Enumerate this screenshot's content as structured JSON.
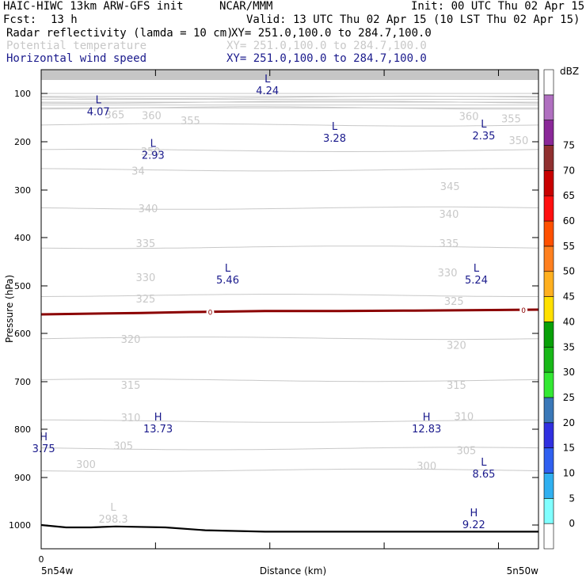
{
  "header": {
    "title": "HAIC-HIWC 13km ARW-GFS init",
    "org": "NCAR/MMM",
    "init": "Init: 00 UTC Thu 02 Apr 15",
    "fcst_label": "Fcst:",
    "fcst_value": "13 h",
    "valid": "Valid: 13 UTC Thu 02 Apr 15 (10 LST Thu 02 Apr 15)",
    "fields": [
      {
        "name": "Radar reflectivity (lamda = 10 cm)",
        "xy": "XY= 251.0,100.0 to 284.7,100.0",
        "color": "#000000"
      },
      {
        "name": "Potential temperature",
        "xy": "XY= 251.0,100.0 to 284.7,100.0",
        "color": "#c8c8c8"
      },
      {
        "name": "Horizontal wind speed",
        "xy": "XY= 251.0,100.0 to 284.7,100.0",
        "color": "#1a1a8c"
      }
    ]
  },
  "chart_data": {
    "type": "contour-cross-section",
    "ylabel": "Pressure (hPa)",
    "xlabel": "Distance (km)",
    "y_ticks": [
      "100",
      "200",
      "300",
      "400",
      "500",
      "600",
      "700",
      "800",
      "900",
      "1000"
    ],
    "x_start_tick": "0",
    "x_left_label": "5n54w",
    "x_right_label": "5n50w",
    "ylim": [
      1045,
      60
    ],
    "xlim": [
      0,
      100
    ],
    "colorbar": {
      "unit": "dBZ",
      "levels": [
        "0",
        "5",
        "10",
        "15",
        "20",
        "25",
        "30",
        "35",
        "40",
        "45",
        "50",
        "55",
        "60",
        "65",
        "70",
        "75"
      ],
      "colors": [
        "#ffffff",
        "#80ffff",
        "#30b0f0",
        "#3060f0",
        "#3030e0",
        "#3a78b8",
        "#33e833",
        "#18b818",
        "#08a008",
        "#ffe000",
        "#ffb020",
        "#ff8020",
        "#ff5000",
        "#ff1010",
        "#c80000",
        "#903030",
        "#8a2898",
        "#b070c0",
        "#ffffff"
      ]
    },
    "theta_contours": [
      {
        "label": "365",
        "p": 108
      },
      {
        "label": "360",
        "p": 118
      },
      {
        "label": "355",
        "p": 130
      },
      {
        "label": "350",
        "p": 165
      },
      {
        "label": "345",
        "p": 218
      },
      {
        "label": "340",
        "p": 258
      },
      {
        "label": "335",
        "p": 338
      },
      {
        "label": "330",
        "p": 420
      },
      {
        "label": "325",
        "p": 520
      },
      {
        "label": "320",
        "p": 610
      },
      {
        "label": "315",
        "p": 697
      },
      {
        "label": "310",
        "p": 783
      },
      {
        "label": "305",
        "p": 840
      },
      {
        "label": "300",
        "p": 885
      }
    ],
    "theta_labels": [
      {
        "text": "365",
        "x": 14.8,
        "p": 152
      },
      {
        "text": "360",
        "x": 22.2,
        "p": 153
      },
      {
        "text": "355",
        "x": 30.0,
        "p": 164
      },
      {
        "text": "350",
        "x": 22.0,
        "p": 228
      },
      {
        "text": "34",
        "x": 19.5,
        "p": 268
      },
      {
        "text": "345",
        "x": 82.2,
        "p": 300
      },
      {
        "text": "340",
        "x": 21.5,
        "p": 347
      },
      {
        "text": "340",
        "x": 82.0,
        "p": 358
      },
      {
        "text": "335",
        "x": 21.0,
        "p": 420
      },
      {
        "text": "335",
        "x": 82.0,
        "p": 420
      },
      {
        "text": "330",
        "x": 21.0,
        "p": 490
      },
      {
        "text": "330",
        "x": 81.7,
        "p": 480
      },
      {
        "text": "325",
        "x": 21.0,
        "p": 535
      },
      {
        "text": "325",
        "x": 83.0,
        "p": 540
      },
      {
        "text": "320",
        "x": 18.0,
        "p": 620
      },
      {
        "text": "320",
        "x": 83.5,
        "p": 632
      },
      {
        "text": "315",
        "x": 18.0,
        "p": 715
      },
      {
        "text": "315",
        "x": 83.5,
        "p": 715
      },
      {
        "text": "310",
        "x": 18.0,
        "p": 783
      },
      {
        "text": "310",
        "x": 85.0,
        "p": 781
      },
      {
        "text": "305",
        "x": 16.5,
        "p": 842
      },
      {
        "text": "305",
        "x": 85.5,
        "p": 852
      },
      {
        "text": "300",
        "x": 9.0,
        "p": 880
      },
      {
        "text": "300",
        "x": 77.5,
        "p": 884
      },
      {
        "text": "360",
        "x": 86.0,
        "p": 155
      },
      {
        "text": "355",
        "x": 94.5,
        "p": 160
      },
      {
        "text": "350",
        "x": 96.0,
        "p": 205
      }
    ],
    "extrema": [
      {
        "kind": "L",
        "value": "4.24",
        "x": 45.5,
        "p": 92
      },
      {
        "kind": "L",
        "value": "4.07",
        "x": 11.5,
        "p": 135
      },
      {
        "kind": "L",
        "value": "3.28",
        "x": 59.0,
        "p": 190
      },
      {
        "kind": "L",
        "value": "2.35",
        "x": 89.0,
        "p": 185
      },
      {
        "kind": "L",
        "value": "2.93",
        "x": 22.5,
        "p": 225
      },
      {
        "kind": "L",
        "value": "5.46",
        "x": 37.5,
        "p": 485
      },
      {
        "kind": "L",
        "value": "5.24",
        "x": 87.5,
        "p": 485
      },
      {
        "kind": "H",
        "value": "13.73",
        "x": 23.5,
        "p": 797
      },
      {
        "kind": "H",
        "value": "12.83",
        "x": 77.5,
        "p": 797
      },
      {
        "kind": "H",
        "value": "3.75",
        "x": 0.5,
        "p": 838
      },
      {
        "kind": "L",
        "value": "8.65",
        "x": 89.0,
        "p": 890
      },
      {
        "kind": "H",
        "value": "9.22",
        "x": 87.0,
        "p": 997
      }
    ],
    "theta_min": {
      "kind": "L",
      "value": "298.3",
      "x": 14.5,
      "p": 985
    },
    "zero_dbz_label": "0",
    "reflectivity_zero_line": [
      [
        0,
        560
      ],
      [
        20,
        557
      ],
      [
        30,
        555
      ],
      [
        45,
        553
      ],
      [
        60,
        553
      ],
      [
        75,
        552
      ],
      [
        100,
        550
      ]
    ],
    "terrain": [
      [
        0,
        1000
      ],
      [
        5,
        1005
      ],
      [
        10,
        1005
      ],
      [
        15,
        1003
      ],
      [
        25,
        1005
      ],
      [
        33,
        1011
      ],
      [
        45,
        1014
      ],
      [
        60,
        1014
      ],
      [
        80,
        1014
      ],
      [
        100,
        1014
      ]
    ],
    "colors": {
      "theta": "#c8c8c8",
      "wind": "#1a1a8c",
      "refl_line": "#8b0000",
      "terrain": "#000000",
      "top_shade": "#c6c6c6"
    }
  }
}
